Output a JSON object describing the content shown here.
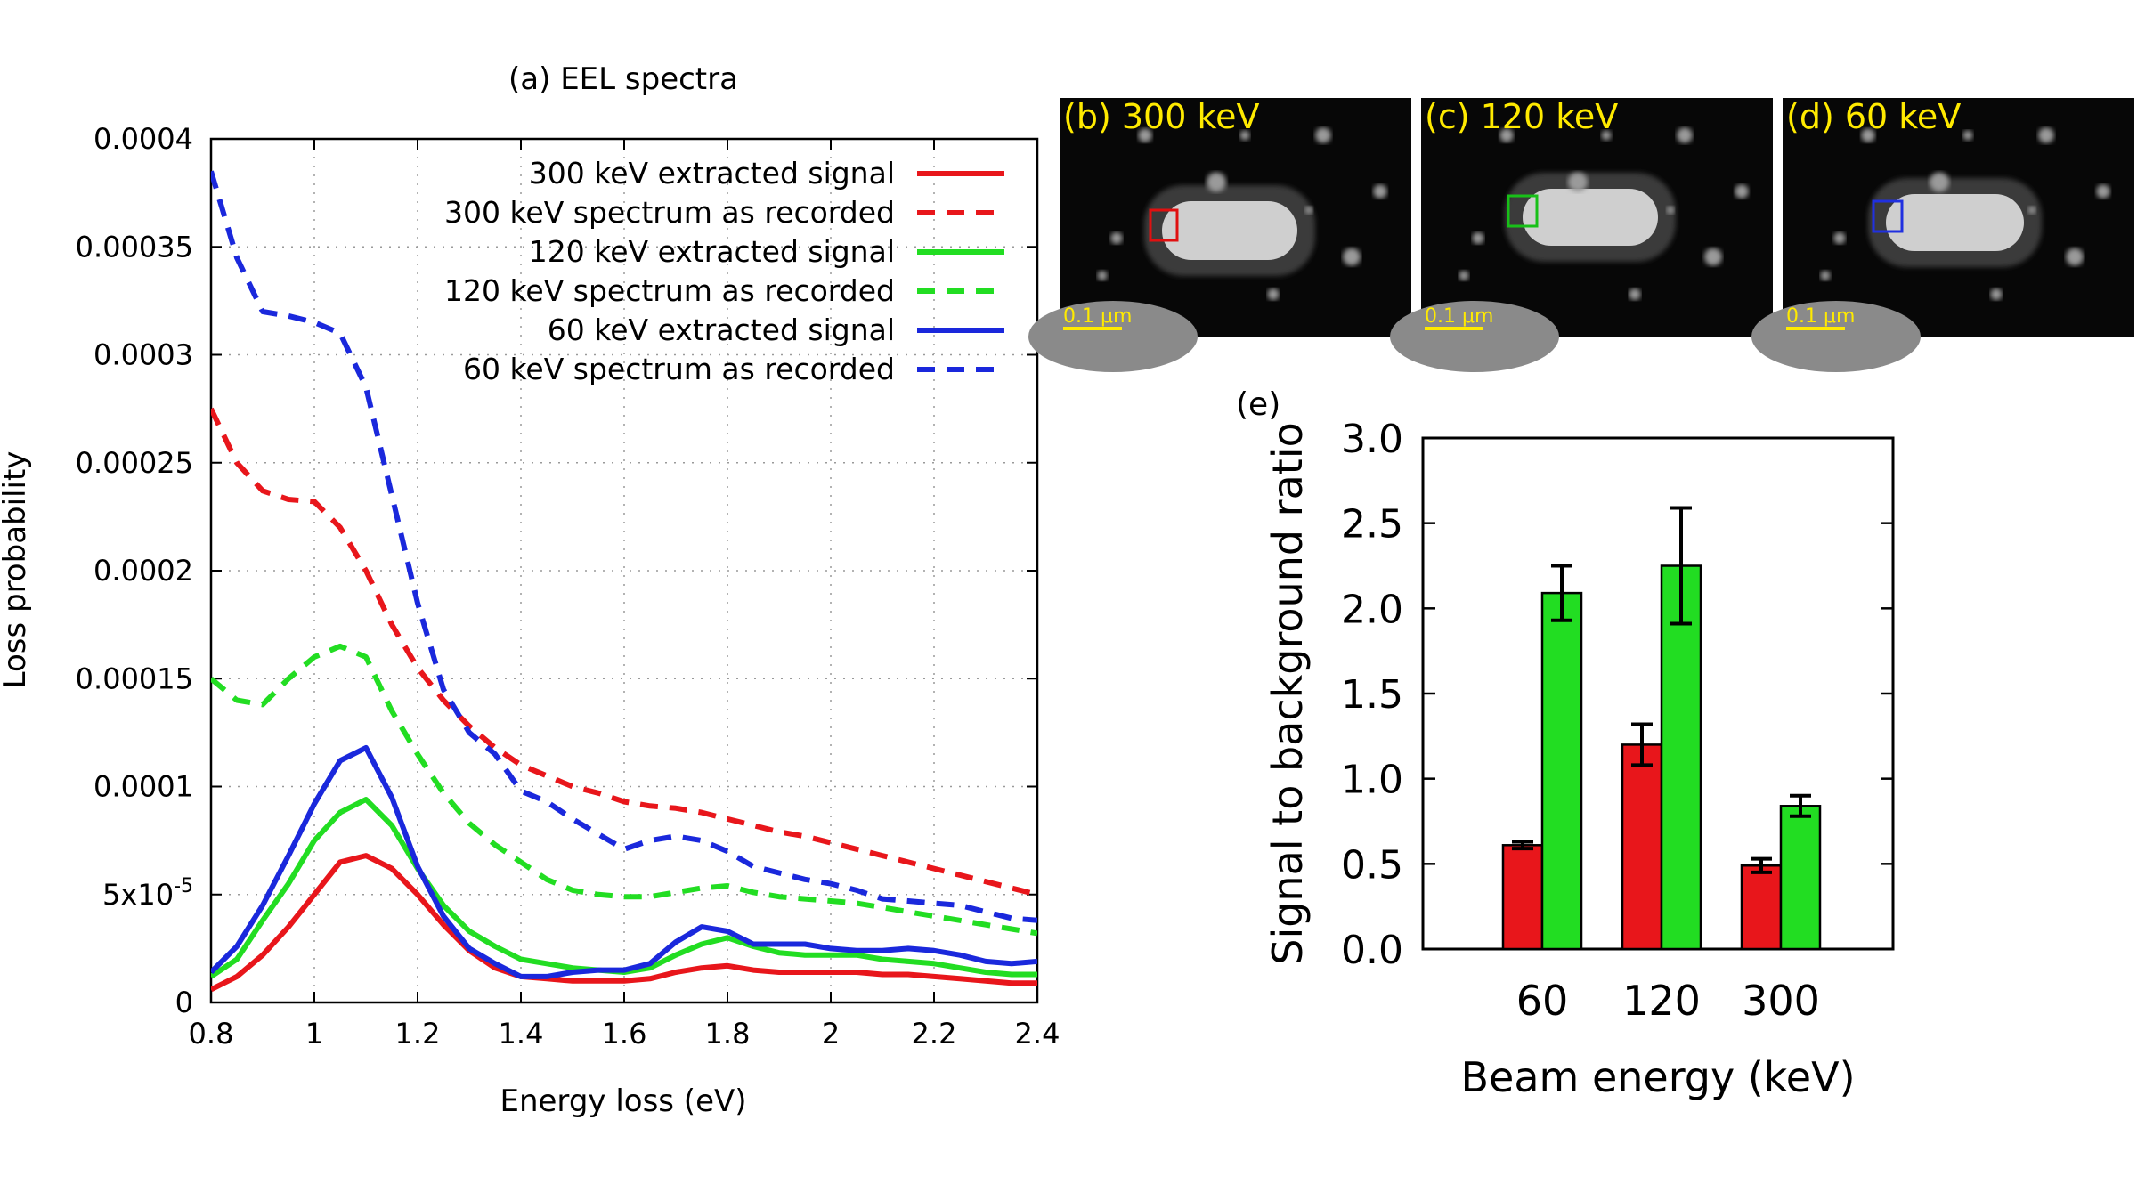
{
  "colors": {
    "red": "#e8161b",
    "green": "#22dd22",
    "blue": "#1a28dc",
    "scale_bar": "#ffea00",
    "roi_b": "#e01010",
    "roi_c": "#18c018",
    "roi_d": "#2030e0"
  },
  "panel_a": {
    "title": "(a) EEL spectra",
    "chart_data": {
      "type": "line",
      "title": "(a) EEL spectra",
      "xlabel": "Energy loss (eV)",
      "ylabel": "Loss probability",
      "xlim": [
        0.8,
        2.4
      ],
      "ylim": [
        0,
        0.0004
      ],
      "xticks": [
        "0.8",
        "1",
        "1.2",
        "1.4",
        "1.6",
        "1.8",
        "2",
        "2.2",
        "2.4"
      ],
      "yticks": [
        "0",
        "5x10-5",
        "0.0001",
        "0.00015",
        "0.0002",
        "0.00025",
        "0.0003",
        "0.00035",
        "0.0004"
      ],
      "grid": true,
      "legend_position": "top-right",
      "series": [
        {
          "name": "300 keV extracted signal",
          "color": "red",
          "dash": false,
          "x": [
            0.8,
            0.85,
            0.9,
            0.95,
            1.0,
            1.05,
            1.1,
            1.15,
            1.2,
            1.25,
            1.3,
            1.35,
            1.4,
            1.45,
            1.5,
            1.55,
            1.6,
            1.65,
            1.7,
            1.75,
            1.8,
            1.85,
            1.9,
            1.95,
            2.0,
            2.05,
            2.1,
            2.15,
            2.2,
            2.25,
            2.3,
            2.35,
            2.4
          ],
          "y": [
            6e-06,
            1.2e-05,
            2.2e-05,
            3.5e-05,
            5e-05,
            6.5e-05,
            6.8e-05,
            6.2e-05,
            5e-05,
            3.6e-05,
            2.4e-05,
            1.6e-05,
            1.2e-05,
            1.1e-05,
            1e-05,
            1e-05,
            1e-05,
            1.1e-05,
            1.4e-05,
            1.6e-05,
            1.7e-05,
            1.5e-05,
            1.4e-05,
            1.4e-05,
            1.4e-05,
            1.4e-05,
            1.3e-05,
            1.3e-05,
            1.2e-05,
            1.1e-05,
            1e-05,
            9e-06,
            9e-06
          ]
        },
        {
          "name": "300 keV spectrum as recorded",
          "color": "red",
          "dash": true,
          "x": [
            0.8,
            0.85,
            0.9,
            0.95,
            1.0,
            1.05,
            1.1,
            1.15,
            1.2,
            1.25,
            1.3,
            1.35,
            1.4,
            1.45,
            1.5,
            1.55,
            1.6,
            1.65,
            1.7,
            1.75,
            1.8,
            1.85,
            1.9,
            1.95,
            2.0,
            2.05,
            2.1,
            2.15,
            2.2,
            2.25,
            2.3,
            2.35,
            2.4
          ],
          "y": [
            0.000275,
            0.00025,
            0.000237,
            0.000233,
            0.000232,
            0.00022,
            0.0002,
            0.000175,
            0.000155,
            0.00014,
            0.000128,
            0.000118,
            0.00011,
            0.000105,
            0.0001,
            9.7e-05,
            9.3e-05,
            9.1e-05,
            9e-05,
            8.8e-05,
            8.5e-05,
            8.2e-05,
            7.9e-05,
            7.7e-05,
            7.4e-05,
            7.1e-05,
            6.8e-05,
            6.5e-05,
            6.2e-05,
            5.9e-05,
            5.6e-05,
            5.3e-05,
            5e-05
          ]
        },
        {
          "name": "120 keV extracted signal",
          "color": "green",
          "dash": false,
          "x": [
            0.8,
            0.85,
            0.9,
            0.95,
            1.0,
            1.05,
            1.1,
            1.15,
            1.2,
            1.25,
            1.3,
            1.35,
            1.4,
            1.45,
            1.5,
            1.55,
            1.6,
            1.65,
            1.7,
            1.75,
            1.8,
            1.85,
            1.9,
            1.95,
            2.0,
            2.05,
            2.1,
            2.15,
            2.2,
            2.25,
            2.3,
            2.35,
            2.4
          ],
          "y": [
            1.2e-05,
            2e-05,
            3.8e-05,
            5.5e-05,
            7.5e-05,
            8.8e-05,
            9.4e-05,
            8.2e-05,
            6.2e-05,
            4.5e-05,
            3.3e-05,
            2.6e-05,
            2e-05,
            1.8e-05,
            1.6e-05,
            1.5e-05,
            1.4e-05,
            1.6e-05,
            2.2e-05,
            2.7e-05,
            3e-05,
            2.6e-05,
            2.3e-05,
            2.2e-05,
            2.2e-05,
            2.2e-05,
            2e-05,
            1.9e-05,
            1.8e-05,
            1.6e-05,
            1.4e-05,
            1.3e-05,
            1.3e-05
          ]
        },
        {
          "name": "120 keV spectrum as recorded",
          "color": "green",
          "dash": true,
          "x": [
            0.8,
            0.85,
            0.9,
            0.95,
            1.0,
            1.05,
            1.1,
            1.15,
            1.2,
            1.25,
            1.3,
            1.35,
            1.4,
            1.45,
            1.5,
            1.55,
            1.6,
            1.65,
            1.7,
            1.75,
            1.8,
            1.85,
            1.9,
            1.95,
            2.0,
            2.05,
            2.1,
            2.15,
            2.2,
            2.25,
            2.3,
            2.35,
            2.4
          ],
          "y": [
            0.00015,
            0.00014,
            0.000138,
            0.00015,
            0.00016,
            0.000165,
            0.00016,
            0.000135,
            0.000115,
            9.7e-05,
            8.3e-05,
            7.3e-05,
            6.5e-05,
            5.7e-05,
            5.2e-05,
            5e-05,
            4.9e-05,
            4.9e-05,
            5.1e-05,
            5.3e-05,
            5.4e-05,
            5.1e-05,
            4.9e-05,
            4.8e-05,
            4.7e-05,
            4.6e-05,
            4.4e-05,
            4.2e-05,
            4e-05,
            3.8e-05,
            3.6e-05,
            3.4e-05,
            3.2e-05
          ]
        },
        {
          "name": "60 keV extracted signal",
          "color": "blue",
          "dash": false,
          "x": [
            0.8,
            0.85,
            0.9,
            0.95,
            1.0,
            1.05,
            1.1,
            1.15,
            1.2,
            1.25,
            1.3,
            1.35,
            1.4,
            1.45,
            1.5,
            1.55,
            1.6,
            1.65,
            1.7,
            1.75,
            1.8,
            1.85,
            1.9,
            1.95,
            2.0,
            2.05,
            2.1,
            2.15,
            2.2,
            2.25,
            2.3,
            2.35,
            2.4
          ],
          "y": [
            1.4e-05,
            2.6e-05,
            4.5e-05,
            6.8e-05,
            9.2e-05,
            0.000112,
            0.000118,
            9.5e-05,
            6.3e-05,
            4e-05,
            2.5e-05,
            1.8e-05,
            1.2e-05,
            1.2e-05,
            1.4e-05,
            1.5e-05,
            1.5e-05,
            1.8e-05,
            2.8e-05,
            3.5e-05,
            3.3e-05,
            2.7e-05,
            2.7e-05,
            2.7e-05,
            2.5e-05,
            2.4e-05,
            2.4e-05,
            2.5e-05,
            2.4e-05,
            2.2e-05,
            1.9e-05,
            1.8e-05,
            1.9e-05
          ]
        },
        {
          "name": "60 keV spectrum as recorded",
          "color": "blue",
          "dash": true,
          "x": [
            0.8,
            0.85,
            0.9,
            0.95,
            1.0,
            1.05,
            1.1,
            1.15,
            1.2,
            1.25,
            1.3,
            1.35,
            1.4,
            1.45,
            1.5,
            1.55,
            1.6,
            1.65,
            1.7,
            1.75,
            1.8,
            1.85,
            1.9,
            1.95,
            2.0,
            2.05,
            2.1,
            2.15,
            2.2,
            2.25,
            2.3,
            2.35,
            2.4
          ],
          "y": [
            0.000385,
            0.000345,
            0.00032,
            0.000318,
            0.000315,
            0.00031,
            0.000285,
            0.000235,
            0.000185,
            0.000145,
            0.000125,
            0.000115,
            9.8e-05,
            9.3e-05,
            8.5e-05,
            7.8e-05,
            7.1e-05,
            7.5e-05,
            7.7e-05,
            7.5e-05,
            7e-05,
            6.3e-05,
            6e-05,
            5.7e-05,
            5.5e-05,
            5.2e-05,
            4.8e-05,
            4.7e-05,
            4.6e-05,
            4.5e-05,
            4.2e-05,
            3.9e-05,
            3.8e-05
          ]
        }
      ]
    }
  },
  "panels_micro": [
    {
      "label": "(b) 300 keV",
      "scale": "0.1 μm",
      "roi_color": "roi_b"
    },
    {
      "label": "(c) 120 keV",
      "scale": "0.1 μm",
      "roi_color": "roi_c"
    },
    {
      "label": "(d) 60 keV",
      "scale": "0.1 μm",
      "roi_color": "roi_d"
    }
  ],
  "panel_e": {
    "label": "(e)",
    "chart_data": {
      "type": "bar",
      "xlabel": "Beam energy (keV)",
      "ylabel": "Signal to background ratio",
      "categories": [
        "60",
        "120",
        "300"
      ],
      "ylim": [
        0,
        3.0
      ],
      "yticks": [
        "0.0",
        "0.5",
        "1.0",
        "1.5",
        "2.0",
        "2.5",
        "3.0"
      ],
      "series": [
        {
          "color": "red",
          "values": [
            0.61,
            1.2,
            0.49
          ],
          "errors": [
            0.02,
            0.12,
            0.04
          ]
        },
        {
          "color": "green",
          "values": [
            2.09,
            2.25,
            0.84
          ],
          "errors": [
            0.16,
            0.34,
            0.06
          ]
        }
      ]
    }
  }
}
